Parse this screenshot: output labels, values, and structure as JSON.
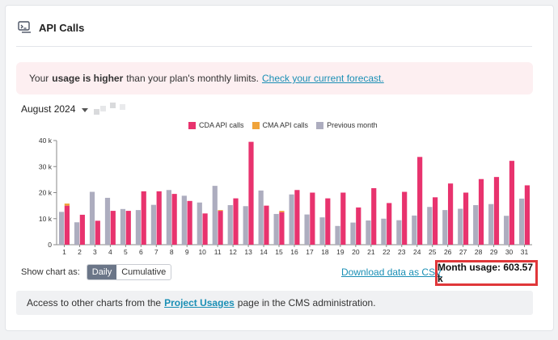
{
  "header": {
    "title": "API Calls",
    "icon": "api-icon"
  },
  "alert": {
    "prefix": "Your",
    "bold": "usage is higher",
    "suffix": "than your plan's monthly limits.",
    "link": "Check your current forecast."
  },
  "month_selector": {
    "value": "August 2024"
  },
  "colors": {
    "cda": "#e8336e",
    "cma": "#f0a33a",
    "prev": "#adadbf"
  },
  "chart_data": {
    "type": "bar",
    "legend_position": "top",
    "grid": false,
    "ylim": [
      0,
      40000
    ],
    "y_ticks": [
      "0",
      "10 k",
      "20 k",
      "30 k",
      "40 k"
    ],
    "categories": [
      "1",
      "2",
      "3",
      "4",
      "5",
      "6",
      "7",
      "8",
      "9",
      "10",
      "11",
      "12",
      "13",
      "14",
      "15",
      "16",
      "17",
      "18",
      "19",
      "20",
      "21",
      "22",
      "23",
      "24",
      "25",
      "26",
      "27",
      "28",
      "29",
      "30",
      "31"
    ],
    "series": [
      {
        "name": "CDA API calls",
        "values": [
          15000,
          11500,
          9200,
          13000,
          13000,
          20500,
          20500,
          19500,
          16800,
          12000,
          13000,
          17800,
          39500,
          15000,
          12500,
          21000,
          20000,
          17800,
          20000,
          14300,
          21700,
          16000,
          20300,
          33700,
          18200,
          23500,
          20000,
          25200,
          26000,
          32200,
          22800
        ]
      },
      {
        "name": "CMA API calls",
        "values": [
          800,
          0,
          0,
          0,
          0,
          0,
          0,
          0,
          0,
          0,
          300,
          0,
          0,
          0,
          500,
          0,
          0,
          0,
          0,
          0,
          0,
          0,
          0,
          0,
          0,
          0,
          0,
          0,
          0,
          0,
          0
        ]
      },
      {
        "name": "Previous month",
        "values": [
          12600,
          8600,
          20300,
          18000,
          13700,
          13300,
          15300,
          21000,
          18800,
          16200,
          22600,
          15200,
          14800,
          20800,
          11800,
          19300,
          11600,
          10500,
          7200,
          8500,
          9300,
          10000,
          9400,
          11200,
          14500,
          13300,
          13800,
          15200,
          15600,
          11100,
          17700
        ]
      }
    ]
  },
  "controls": {
    "show_as_label": "Show chart as:",
    "daily": "Daily",
    "cumulative": "Cumulative",
    "download": "Download data as CSV",
    "month_usage": "Month usage: 603.57 k"
  },
  "footer": {
    "prefix": "Access to other charts from the",
    "link": "Project Usages",
    "suffix": "page in the CMS administration."
  }
}
